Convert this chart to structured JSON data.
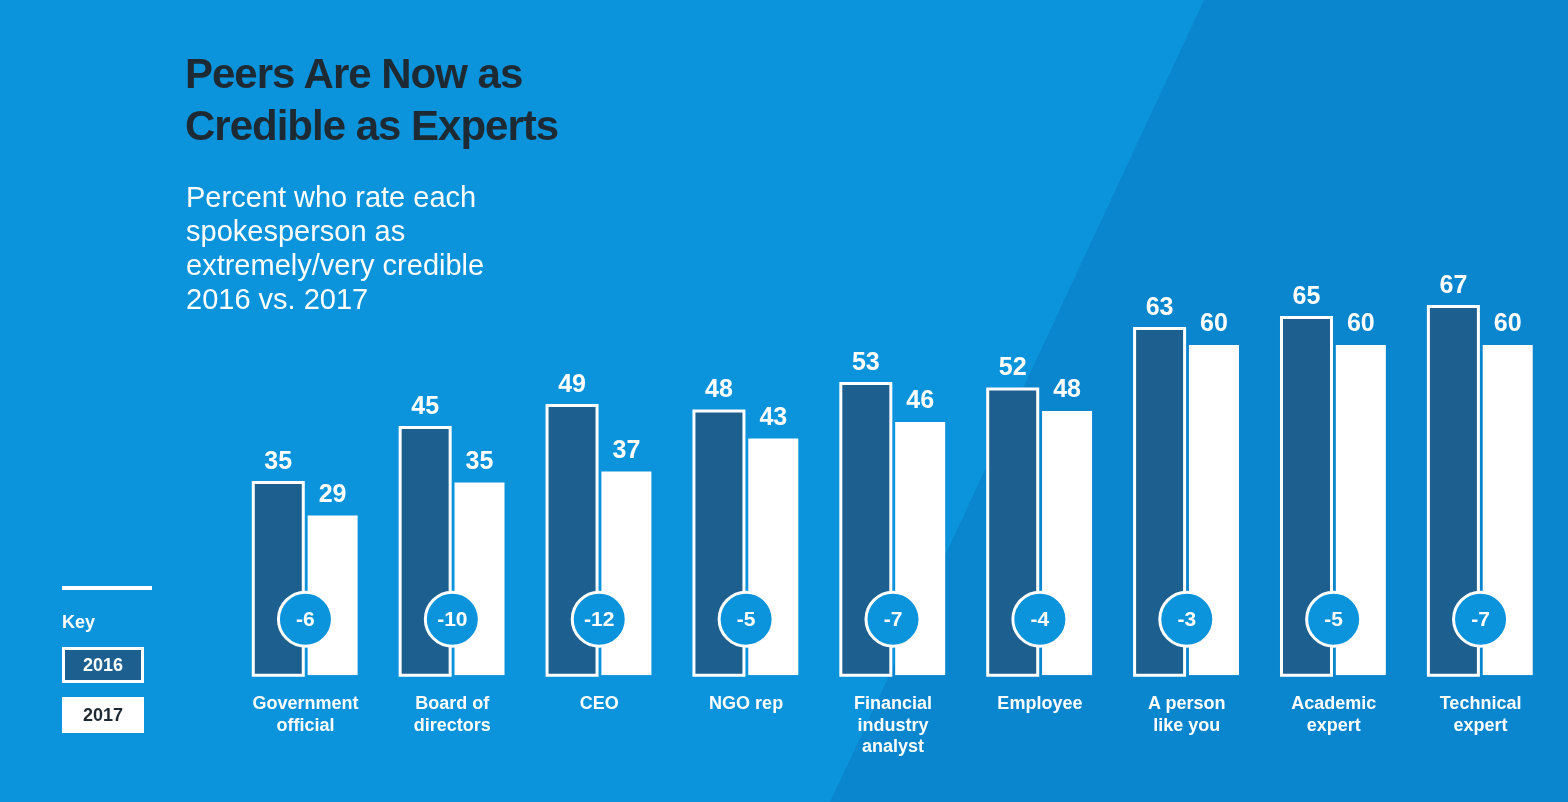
{
  "chart_data": {
    "type": "bar",
    "title": "Peers Are Now as Credible as Experts",
    "subtitle": "Percent who rate each spokesperson as extremely/very credible 2016 vs. 2017",
    "categories": [
      "Government official",
      "Board of directors",
      "CEO",
      "NGO rep",
      "Financial industry analyst",
      "Employee",
      "A person like you",
      "Academic expert",
      "Technical expert"
    ],
    "series": [
      {
        "name": "2016",
        "color": "#1d5f8f",
        "values": [
          35,
          45,
          49,
          48,
          53,
          52,
          63,
          65,
          67
        ]
      },
      {
        "name": "2017",
        "color": "#ffffff",
        "values": [
          29,
          35,
          37,
          43,
          46,
          48,
          60,
          60,
          60
        ]
      }
    ],
    "annotations": [
      {
        "text": "-6",
        "x": "Government official"
      },
      {
        "text": "-10",
        "x": "Board of directors"
      },
      {
        "text": "-12",
        "x": "CEO"
      },
      {
        "text": "-5",
        "x": "NGO rep"
      },
      {
        "text": "-7",
        "x": "Financial industry analyst"
      },
      {
        "text": "-4",
        "x": "Employee"
      },
      {
        "text": "-3",
        "x": "A person like you"
      },
      {
        "text": "-5",
        "x": "Academic expert"
      },
      {
        "text": "-7",
        "x": "Technical expert"
      }
    ],
    "legend_title": "Key",
    "legend": "bottom left",
    "data_labels": true,
    "grid": false
  }
}
